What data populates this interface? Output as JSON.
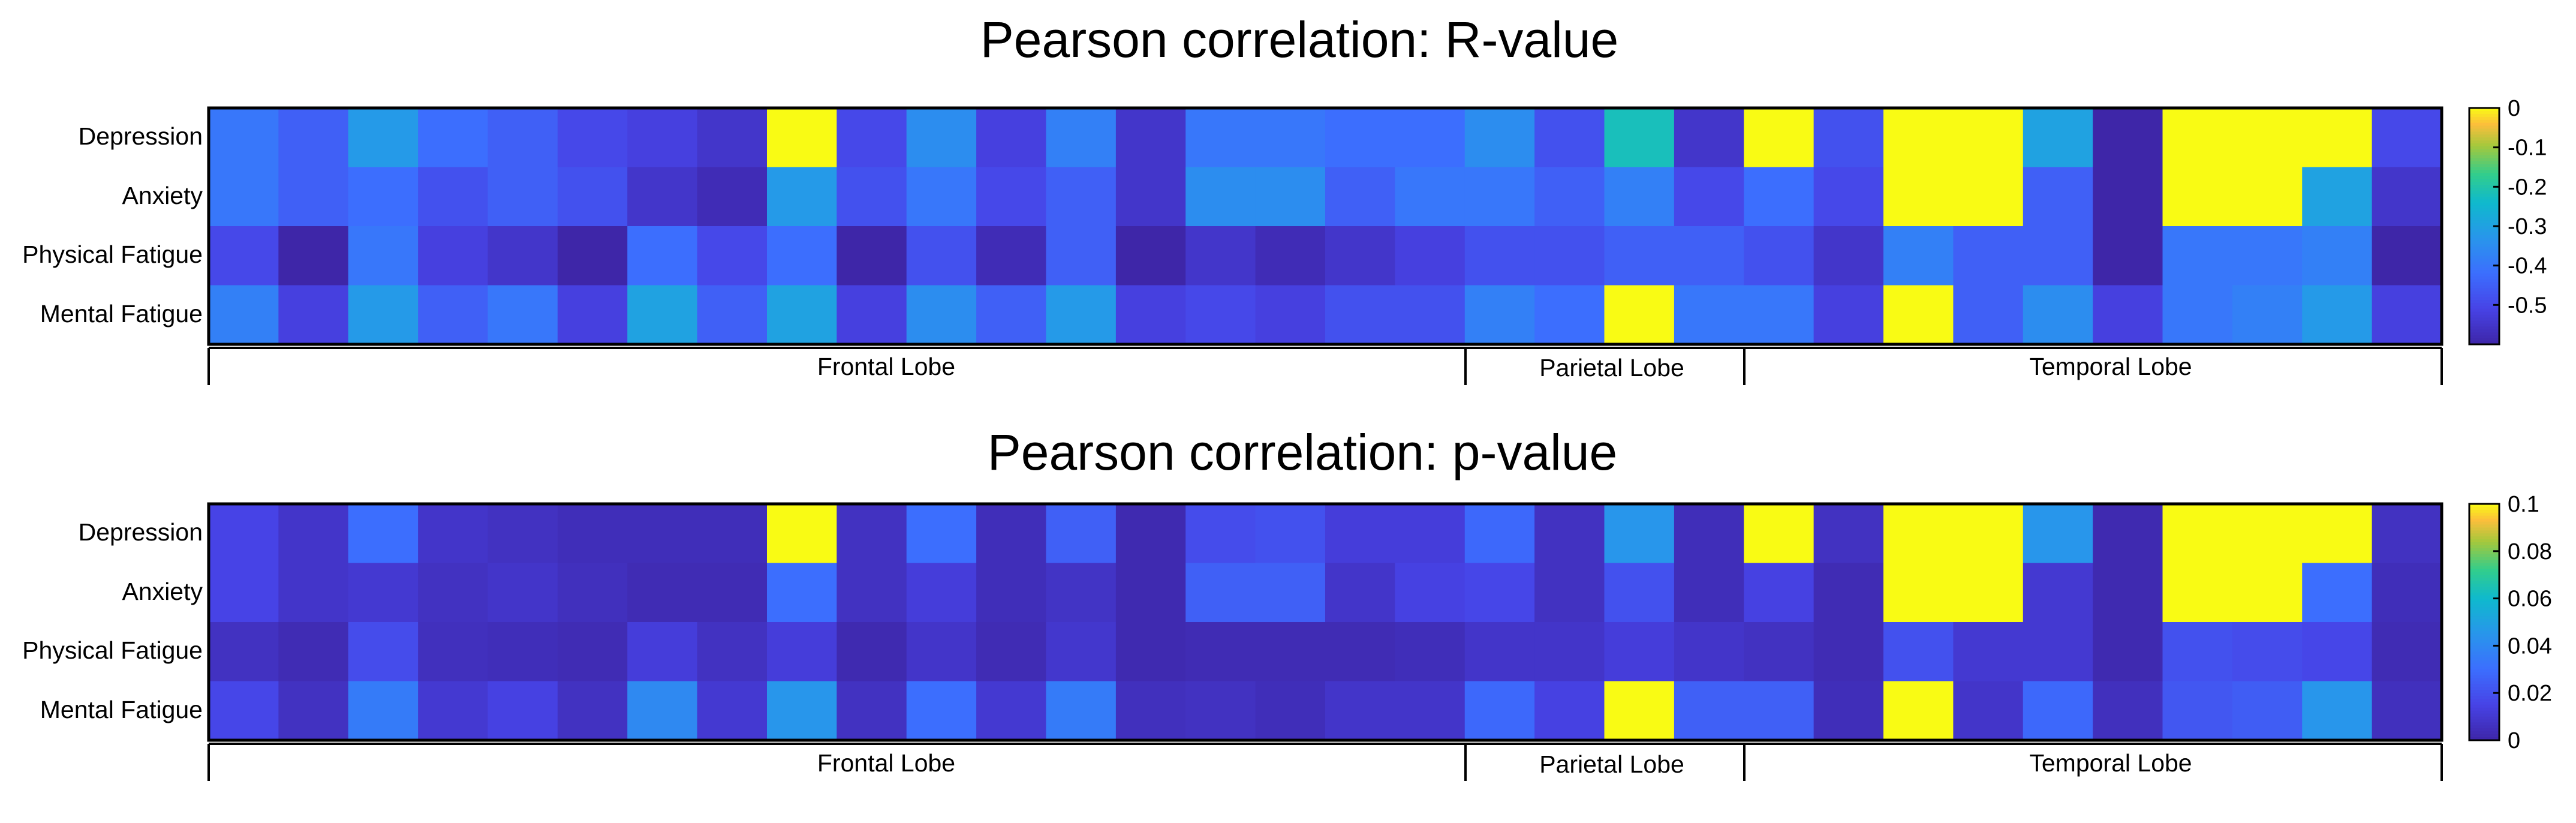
{
  "chart_data": [
    {
      "type": "heatmap",
      "title": "Pearson correlation: R-value",
      "rows": [
        "Depression",
        "Anxiety",
        "Physical Fatigue",
        "Mental Fatigue"
      ],
      "regions": [
        "Frontal Lobe",
        "Parietal Lobe",
        "Temporal Lobe"
      ],
      "region_spans": [
        [
          0,
          18
        ],
        [
          18,
          22
        ],
        [
          22,
          32
        ]
      ],
      "n_columns": 32,
      "colorbar": {
        "range": [
          -0.6,
          0
        ],
        "ticks": [
          0,
          -0.1,
          -0.2,
          -0.3,
          -0.4,
          -0.5
        ],
        "tick_labels": [
          "0",
          "-0.1",
          "-0.2",
          "-0.3",
          "-0.4",
          "-0.5"
        ]
      },
      "values": [
        [
          -0.4,
          -0.45,
          -0.32,
          -0.42,
          -0.45,
          -0.5,
          -0.52,
          -0.55,
          0,
          -0.5,
          -0.35,
          -0.52,
          -0.38,
          -0.55,
          -0.4,
          -0.4,
          -0.42,
          -0.42,
          -0.35,
          -0.48,
          -0.22,
          -0.55,
          0,
          -0.48,
          0,
          0,
          -0.3,
          -0.65,
          0,
          0,
          0,
          -0.5
        ],
        [
          -0.4,
          -0.45,
          -0.42,
          -0.48,
          -0.45,
          -0.48,
          -0.55,
          -0.58,
          -0.32,
          -0.48,
          -0.4,
          -0.5,
          -0.45,
          -0.55,
          -0.35,
          -0.35,
          -0.45,
          -0.4,
          -0.4,
          -0.45,
          -0.38,
          -0.5,
          -0.42,
          -0.5,
          0,
          0,
          -0.45,
          -0.6,
          0,
          0,
          -0.3,
          -0.55
        ],
        [
          -0.5,
          -0.6,
          -0.4,
          -0.52,
          -0.55,
          -0.62,
          -0.42,
          -0.5,
          -0.42,
          -0.65,
          -0.48,
          -0.58,
          -0.45,
          -0.62,
          -0.55,
          -0.58,
          -0.55,
          -0.52,
          -0.48,
          -0.48,
          -0.45,
          -0.45,
          -0.48,
          -0.55,
          -0.38,
          -0.45,
          -0.45,
          -0.62,
          -0.4,
          -0.4,
          -0.38,
          -0.65
        ],
        [
          -0.38,
          -0.52,
          -0.32,
          -0.45,
          -0.4,
          -0.52,
          -0.3,
          -0.45,
          -0.3,
          -0.52,
          -0.35,
          -0.45,
          -0.32,
          -0.52,
          -0.5,
          -0.52,
          -0.48,
          -0.48,
          -0.38,
          -0.42,
          0,
          -0.4,
          -0.4,
          -0.52,
          0,
          -0.45,
          -0.35,
          -0.52,
          -0.4,
          -0.38,
          -0.32,
          -0.52
        ]
      ]
    },
    {
      "type": "heatmap",
      "title": "Pearson correlation: p-value",
      "rows": [
        "Depression",
        "Anxiety",
        "Physical Fatigue",
        "Mental Fatigue"
      ],
      "regions": [
        "Frontal Lobe",
        "Parietal Lobe",
        "Temporal Lobe"
      ],
      "region_spans": [
        [
          0,
          18
        ],
        [
          18,
          22
        ],
        [
          22,
          32
        ]
      ],
      "n_columns": 32,
      "colorbar": {
        "range": [
          0,
          0.1
        ],
        "ticks": [
          0.1,
          0.08,
          0.06,
          0.04,
          0.02,
          0
        ],
        "tick_labels": [
          "0.1",
          "0.08",
          "0.06",
          "0.04",
          "0.02",
          "0"
        ]
      },
      "values": [
        [
          0.015,
          0.008,
          0.03,
          0.008,
          0.006,
          0.004,
          0.004,
          0.004,
          0.1,
          0.006,
          0.03,
          0.004,
          0.025,
          0.002,
          0.018,
          0.02,
          0.012,
          0.012,
          0.028,
          0.006,
          0.045,
          0.004,
          0.1,
          0.006,
          0.1,
          0.1,
          0.045,
          0.002,
          0.1,
          0.1,
          0.1,
          0.006
        ],
        [
          0.015,
          0.008,
          0.01,
          0.006,
          0.008,
          0.005,
          0.003,
          0.003,
          0.03,
          0.006,
          0.012,
          0.004,
          0.007,
          0.002,
          0.025,
          0.025,
          0.008,
          0.014,
          0.016,
          0.006,
          0.02,
          0.004,
          0.014,
          0.003,
          0.1,
          0.1,
          0.01,
          0.002,
          0.1,
          0.1,
          0.03,
          0.004
        ],
        [
          0.006,
          0.003,
          0.018,
          0.005,
          0.004,
          0.003,
          0.012,
          0.006,
          0.012,
          0.002,
          0.008,
          0.003,
          0.009,
          0.002,
          0.003,
          0.003,
          0.003,
          0.004,
          0.008,
          0.008,
          0.012,
          0.008,
          0.006,
          0.003,
          0.02,
          0.01,
          0.01,
          0.002,
          0.02,
          0.018,
          0.016,
          0.003
        ],
        [
          0.016,
          0.006,
          0.035,
          0.01,
          0.014,
          0.006,
          0.04,
          0.01,
          0.045,
          0.006,
          0.03,
          0.01,
          0.035,
          0.005,
          0.006,
          0.004,
          0.008,
          0.008,
          0.028,
          0.014,
          0.1,
          0.025,
          0.025,
          0.004,
          0.1,
          0.008,
          0.028,
          0.005,
          0.022,
          0.024,
          0.045,
          0.005
        ]
      ]
    }
  ]
}
